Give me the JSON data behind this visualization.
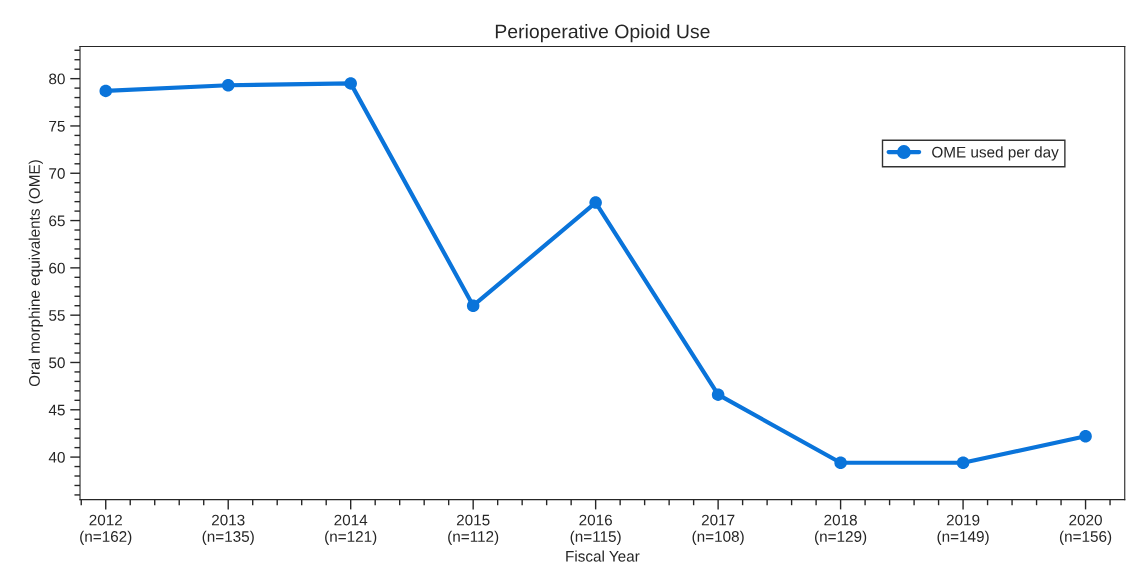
{
  "chart_data": {
    "type": "line",
    "title": "Perioperative Opioid Use",
    "xlabel": "Fiscal Year",
    "ylabel": "Oral morphine equivalents (OME)",
    "categories": [
      "2012\n(n=162)",
      "2013\n(n=135)",
      "2014\n(n=121)",
      "2015\n(n=112)",
      "2016\n(n=115)",
      "2017\n(n=108)",
      "2018\n(n=129)",
      "2019\n(n=149)",
      "2020\n(n=156)"
    ],
    "series": [
      {
        "name": "OME used per day",
        "color": "#0a74da",
        "values": [
          78.7,
          79.3,
          79.5,
          56.0,
          66.9,
          46.6,
          39.4,
          39.4,
          42.2
        ]
      }
    ],
    "ylim": [
      35.5,
      83.4
    ],
    "yticks": [
      40,
      45,
      50,
      55,
      60,
      65,
      70,
      75,
      80
    ],
    "grid": false,
    "legend": "top right",
    "marker": "circle",
    "line_style": "solid"
  }
}
